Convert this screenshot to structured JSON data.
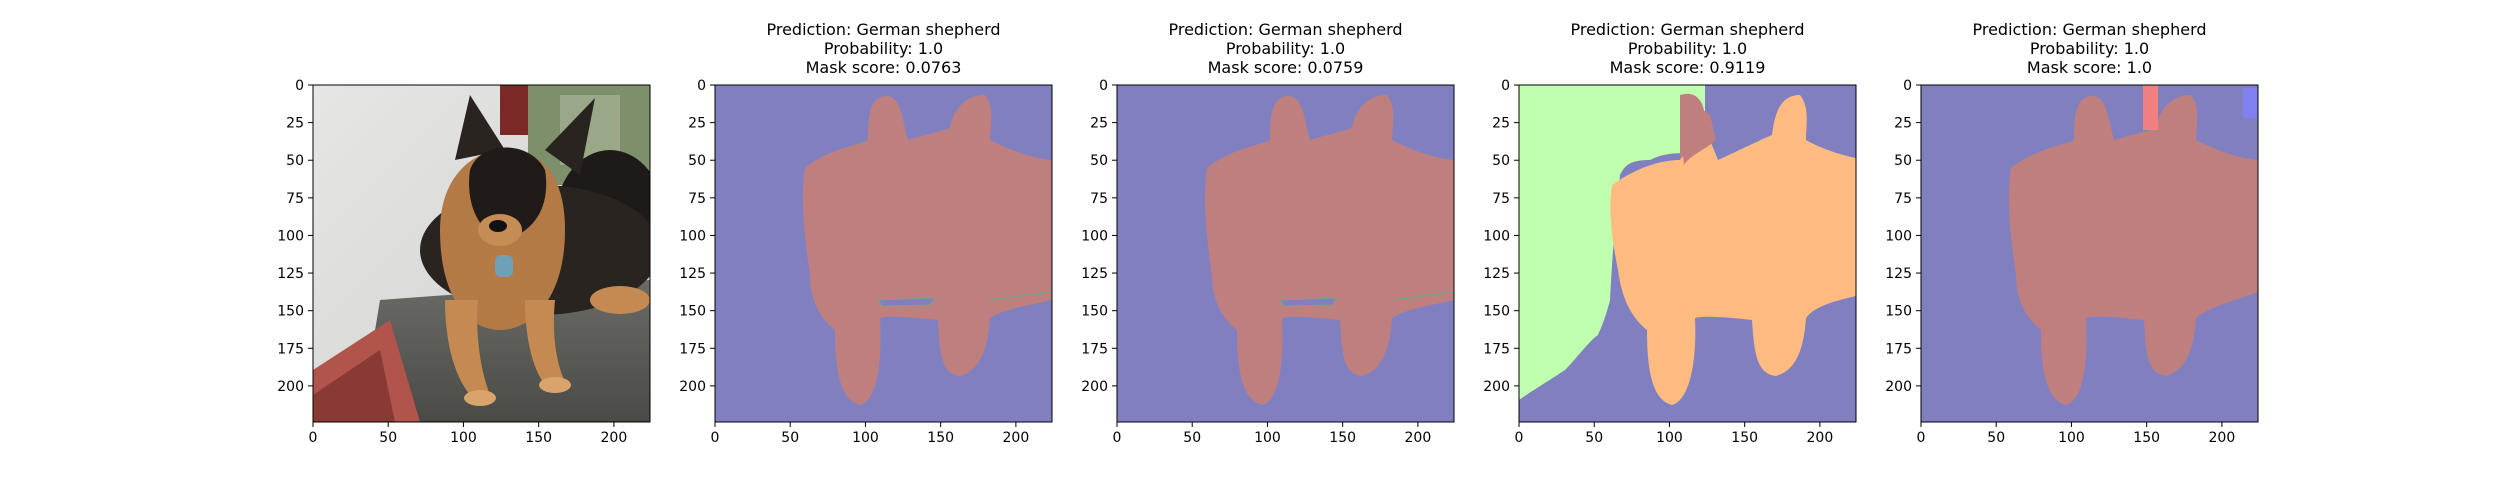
{
  "chart_data": [
    {
      "type": "image",
      "image": "german-shepherd-photo",
      "title": [],
      "x_ticks": [
        0,
        50,
        100,
        150,
        200
      ],
      "y_ticks": [
        0,
        25,
        50,
        75,
        100,
        125,
        150,
        175,
        200
      ],
      "xlim": [
        0,
        224
      ],
      "ylim": [
        224,
        0
      ]
    },
    {
      "type": "segmentation-mask",
      "title": [
        "Prediction: German shepherd",
        "Probability: 1.0",
        "Mask score: 0.0763"
      ],
      "x_ticks": [
        0,
        50,
        100,
        150,
        200
      ],
      "y_ticks": [
        0,
        25,
        50,
        75,
        100,
        125,
        150,
        175,
        200
      ],
      "xlim": [
        0,
        224
      ],
      "ylim": [
        224,
        0
      ]
    },
    {
      "type": "segmentation-mask",
      "title": [
        "Prediction: German shepherd",
        "Probability: 1.0",
        "Mask score: 0.0759"
      ],
      "x_ticks": [
        0,
        50,
        100,
        150,
        200
      ],
      "y_ticks": [
        0,
        25,
        50,
        75,
        100,
        125,
        150,
        175,
        200
      ],
      "xlim": [
        0,
        224
      ],
      "ylim": [
        224,
        0
      ]
    },
    {
      "type": "segmentation-mask",
      "title": [
        "Prediction: German shepherd",
        "Probability: 1.0",
        "Mask score: 0.9119"
      ],
      "x_ticks": [
        0,
        50,
        100,
        150,
        200
      ],
      "y_ticks": [
        0,
        25,
        50,
        75,
        100,
        125,
        150,
        175,
        200
      ],
      "xlim": [
        0,
        224
      ],
      "ylim": [
        224,
        0
      ]
    },
    {
      "type": "segmentation-mask",
      "title": [
        "Prediction: German shepherd",
        "Probability: 1.0",
        "Mask score: 1.0"
      ],
      "x_ticks": [
        0,
        50,
        100,
        150,
        200
      ],
      "y_ticks": [
        0,
        25,
        50,
        75,
        100,
        125,
        150,
        175,
        200
      ],
      "xlim": [
        0,
        224
      ],
      "ylim": [
        224,
        0
      ]
    }
  ],
  "colors": {
    "background_segment": "#8080c0",
    "dog_segment": "#c07f7f",
    "dog_segment_alt": "#ffbb80",
    "wall_segment": "#c0ffb0",
    "small_red_segment": "#f08080",
    "small_blue_segment": "#8080f0"
  }
}
